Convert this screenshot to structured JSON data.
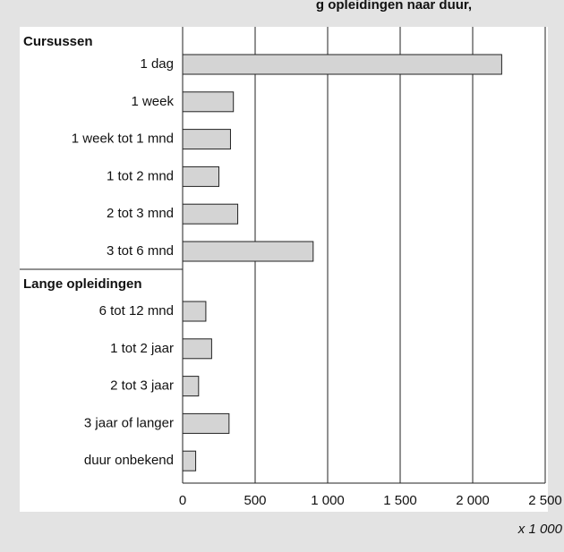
{
  "chart_data": {
    "type": "bar",
    "title": "g opleidingen naar duur, ",
    "groups": [
      {
        "name": "Cursussen",
        "categories": [
          "1 dag",
          "1 week",
          "1 week tot 1 mnd",
          "1 tot 2 mnd",
          "2 tot 3 mnd",
          "3 tot 6 mnd"
        ],
        "values": [
          2200,
          350,
          330,
          250,
          380,
          900
        ]
      },
      {
        "name": "Lange opleidingen",
        "categories": [
          "6 tot 12 mnd",
          "1 tot 2 jaar",
          "2 tot 3 jaar",
          "3 jaar of langer",
          "duur onbekend"
        ],
        "values": [
          160,
          200,
          110,
          320,
          90
        ]
      }
    ],
    "color": "#d4d4d4",
    "xlim": [
      0,
      2500
    ],
    "xticks": [
      0,
      500,
      {
        "value": 1000,
        "label": "1 000"
      },
      {
        "value": 1500,
        "label": "1 500"
      },
      {
        "value": 2000,
        "label": "2 000"
      },
      {
        "value": 2500,
        "label": "2 500"
      }
    ],
    "x_unit_label": "x 1 000",
    "grid": true
  }
}
